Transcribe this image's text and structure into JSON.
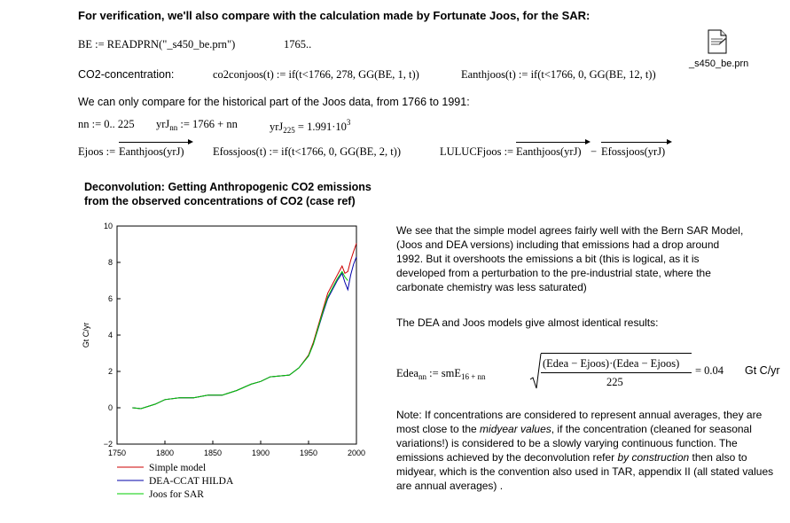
{
  "header": {
    "verification_heading": "For verification, we'll also compare with the calculation made by Fortunate Joos, for the SAR:"
  },
  "readprn": {
    "expr": "BE := READPRN(\"_s450_be.prn\")",
    "result": "1765.."
  },
  "file_icon": {
    "label": "_s450_be.prn"
  },
  "co2_line": {
    "label": "CO2-concentration:",
    "co2_def": "co2conjoos(t) := if(t<1766, 278, GG(BE, 1, t))",
    "eanth_def": "Eanthjoos(t) := if(t<1766, 0, GG(BE, 12, t))"
  },
  "historical_note": "We can only compare for the historical part of the Joos data, from 1766 to 1991:",
  "range_line": {
    "nn": "nn := 0.. 225",
    "yrj_lhs": "yrJ",
    "yrj_sub": "nn",
    "yrj_rhs": ":= 1766 + nn",
    "yrj225_lhs": "yrJ",
    "yrj225_sub": "225",
    "yrj225_rhs": "= 1.991·10",
    "yrj225_exp": "3"
  },
  "ejoos_line": {
    "ejoos_lhs": "Ejoos :=",
    "ejoos_rhs": "Eanthjoos(yrJ)",
    "efoss_def": "Efossjoos(t) := if(t<1766, 0, GG(BE, 2, t))",
    "lulucf_lhs": "LULUCFjoos :=",
    "lulucf_a": "Eanthjoos(yrJ)",
    "lulucf_minus": "−",
    "lulucf_b": "Efossjoos(yrJ)"
  },
  "chart_heading": {
    "line1": "Deconvolution: Getting Anthropogenic CO2 emissions",
    "line2": "from the observed concentrations of CO2 (case ref)"
  },
  "chart_data": {
    "type": "line",
    "title": "Deconvolution: Getting Anthropogenic CO2 emissions from the observed concentrations of CO2 (case ref)",
    "xlabel": "",
    "ylabel": "Gt C/yr",
    "xlim": [
      1750,
      2000
    ],
    "ylim": [
      -2,
      10
    ],
    "x_ticks": [
      1750,
      1800,
      1850,
      1900,
      1950,
      2000
    ],
    "y_ticks": [
      -2,
      0,
      2,
      4,
      6,
      8,
      10
    ],
    "x_tick_labels": [
      "1750",
      "1800",
      "1850",
      "1900",
      "1950",
      "2000"
    ],
    "y_tick_labels": [
      "−2",
      "0",
      "2",
      "4",
      "6",
      "8",
      "10"
    ],
    "series": [
      {
        "name": "Simple model",
        "color": "#cc0000",
        "x": [
          1766,
          1775,
          1790,
          1800,
          1815,
          1830,
          1845,
          1860,
          1875,
          1890,
          1900,
          1910,
          1920,
          1930,
          1940,
          1950,
          1955,
          1960,
          1965,
          1970,
          1975,
          1980,
          1985,
          1988,
          1991,
          1994,
          1997,
          2000
        ],
        "y": [
          0.0,
          -0.05,
          0.2,
          0.45,
          0.55,
          0.55,
          0.7,
          0.7,
          0.95,
          1.3,
          1.45,
          1.7,
          1.75,
          1.8,
          2.2,
          2.9,
          3.6,
          4.5,
          5.4,
          6.3,
          6.8,
          7.3,
          7.8,
          7.4,
          7.5,
          8.1,
          8.6,
          9.05
        ]
      },
      {
        "name": "DEA-CCAT HILDA",
        "color": "#0000aa",
        "x": [
          1766,
          1775,
          1790,
          1800,
          1815,
          1830,
          1845,
          1860,
          1875,
          1890,
          1900,
          1910,
          1920,
          1930,
          1940,
          1950,
          1955,
          1960,
          1965,
          1970,
          1975,
          1980,
          1985,
          1988,
          1991,
          1994,
          1997,
          2000
        ],
        "y": [
          0.0,
          -0.05,
          0.2,
          0.45,
          0.55,
          0.55,
          0.7,
          0.7,
          0.95,
          1.3,
          1.45,
          1.7,
          1.75,
          1.8,
          2.2,
          2.85,
          3.5,
          4.35,
          5.2,
          6.0,
          6.5,
          7.0,
          7.4,
          6.9,
          6.5,
          7.3,
          7.9,
          8.3
        ]
      },
      {
        "name": "Joos for SAR",
        "color": "#00cc00",
        "x": [
          1766,
          1775,
          1790,
          1800,
          1815,
          1830,
          1845,
          1860,
          1875,
          1890,
          1900,
          1910,
          1920,
          1930,
          1940,
          1950,
          1955,
          1960,
          1965,
          1970,
          1975,
          1980,
          1985,
          1988,
          1991
        ],
        "y": [
          0.0,
          -0.05,
          0.2,
          0.45,
          0.55,
          0.55,
          0.7,
          0.7,
          0.95,
          1.3,
          1.45,
          1.7,
          1.75,
          1.8,
          2.2,
          2.85,
          3.5,
          4.4,
          5.3,
          6.1,
          6.6,
          7.1,
          7.5,
          7.2,
          7.0
        ]
      }
    ],
    "legend_position": "bottom-left"
  },
  "right_text": {
    "para1": "We see that the simple model agrees fairly well with the Bern SAR Model, (Joos and DEA versions) including that emissions had a drop around 1992. But it overshoots the emissions a bit (this is logical, as it is developed from a perturbation to the pre-industrial state, where the carbonate chemistry was less saturated)",
    "para2": "The DEA and Joos models give almost identical results:",
    "note_part1": "Note: If concentrations are considered to represent annual averages, they are most close to the ",
    "note_em1": "midyear values",
    "note_part2": ", if the concentration (cleaned for seasonal variations!) is considered to be a slowly varying continuous function. The emissions achieved by the deconvolution refer ",
    "note_em2": "by construction",
    "note_part3": " then also to midyear, which is the convention also used in TAR, appendix II (all stated values are annual averages) ."
  },
  "edea_formula": {
    "lhs": "Edea",
    "lhs_sub": "nn",
    "assign": ":= smE",
    "assign_sub": "16 + nn",
    "numerator": "(Edea − Ejoos)·(Edea − Ejoos)",
    "denominator": "225",
    "result": "= 0.04",
    "units": "Gt C/yr"
  }
}
